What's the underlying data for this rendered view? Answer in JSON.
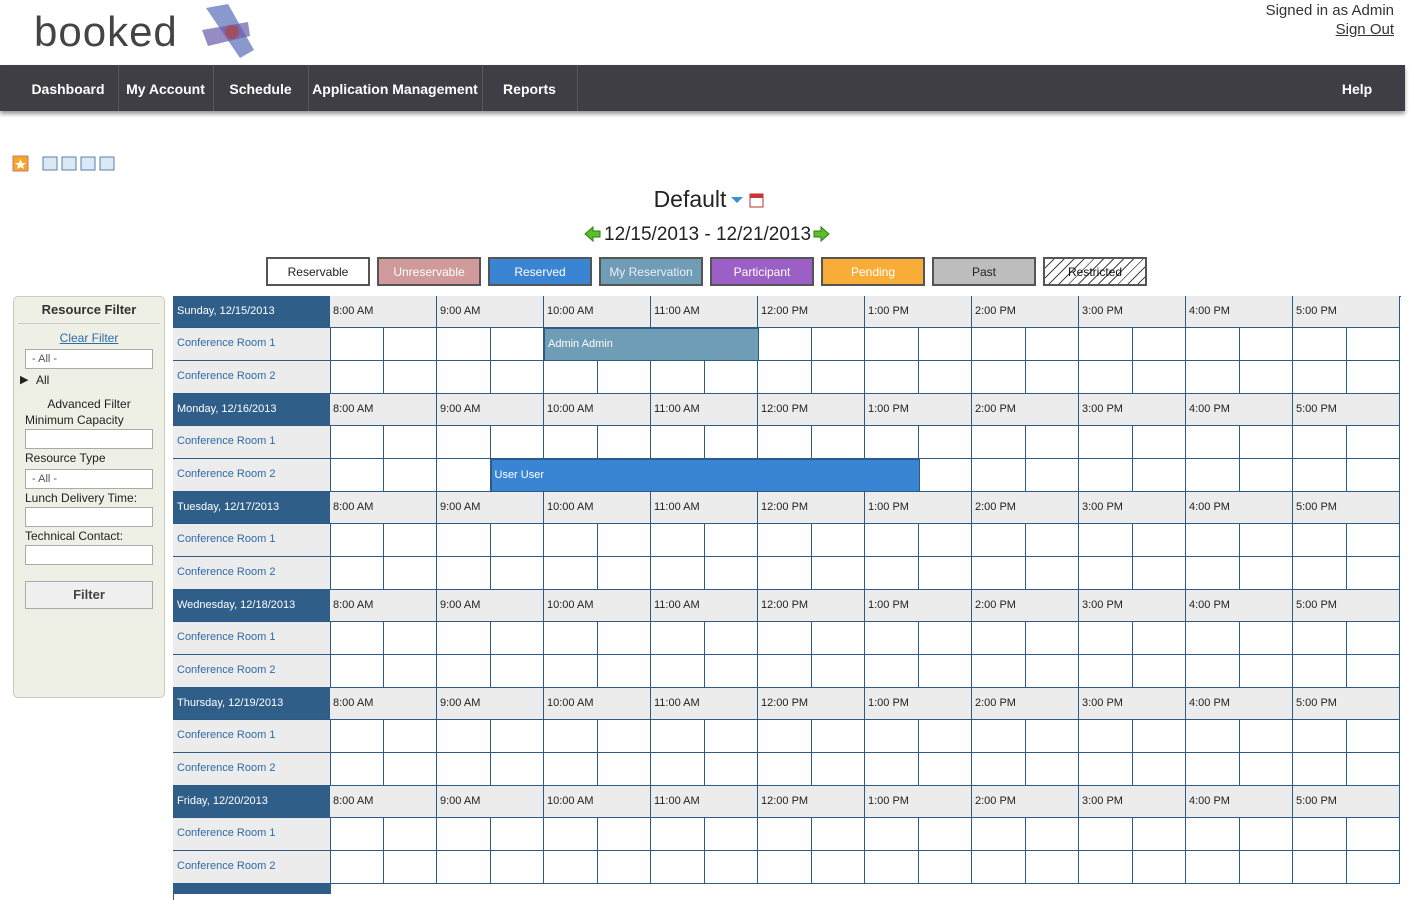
{
  "header": {
    "logo": "booked",
    "signed_in": "Signed in as Admin",
    "sign_out": "Sign Out"
  },
  "nav": [
    "Dashboard",
    "My Account",
    "Schedule",
    "Application Management",
    "Reports",
    "Help"
  ],
  "schedule": {
    "title": "Default",
    "date_range": "12/15/2013 - 12/21/2013"
  },
  "legend": [
    "Reservable",
    "Unreservable",
    "Reserved",
    "My Reservation",
    "Participant",
    "Pending",
    "Past",
    "Restricted"
  ],
  "filter": {
    "title": "Resource Filter",
    "clear": "Clear Filter",
    "resource_select": "- All -",
    "tree": "All",
    "advanced": "Advanced Filter",
    "fields": [
      "Minimum Capacity",
      "Resource Type",
      "Lunch Delivery Time:",
      "Technical Contact:"
    ],
    "type_select": "- All -",
    "button": "Filter"
  },
  "times": [
    "8:00 AM",
    "9:00 AM",
    "10:00 AM",
    "11:00 AM",
    "12:00 PM",
    "1:00 PM",
    "2:00 PM",
    "3:00 PM",
    "4:00 PM",
    "5:00 PM"
  ],
  "days": [
    {
      "label": "Sunday, 12/15/2013",
      "rooms": [
        "Conference Room 1",
        "Conference Room 2"
      ]
    },
    {
      "label": "Monday, 12/16/2013",
      "rooms": [
        "Conference Room 1",
        "Conference Room 2"
      ]
    },
    {
      "label": "Tuesday, 12/17/2013",
      "rooms": [
        "Conference Room 1",
        "Conference Room 2"
      ]
    },
    {
      "label": "Wednesday, 12/18/2013",
      "rooms": [
        "Conference Room 1",
        "Conference Room 2"
      ]
    },
    {
      "label": "Thursday, 12/19/2013",
      "rooms": [
        "Conference Room 1",
        "Conference Room 2"
      ]
    },
    {
      "label": "Friday, 12/20/2013",
      "rooms": [
        "Conference Room 1",
        "Conference Room 2"
      ]
    }
  ],
  "reservations": [
    {
      "label": "Admin Admin"
    },
    {
      "label": "User User"
    }
  ]
}
